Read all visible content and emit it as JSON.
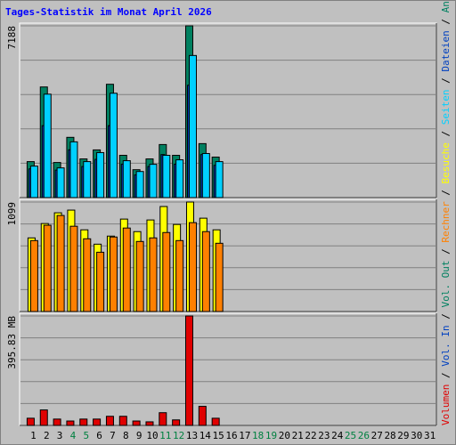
{
  "title": "Tages-Statistik im Monat April 2026",
  "legend_separator": " / ",
  "x_axis": {
    "categories": [
      "1",
      "2",
      "3",
      "4",
      "5",
      "6",
      "7",
      "8",
      "9",
      "10",
      "11",
      "12",
      "13",
      "14",
      "15",
      "16",
      "17",
      "18",
      "19",
      "20",
      "21",
      "22",
      "23",
      "24",
      "25",
      "26",
      "27",
      "28",
      "29",
      "30",
      "31"
    ],
    "colors": [
      "#000000",
      "#000000",
      "#000000",
      "#008040",
      "#008040",
      "#000000",
      "#000000",
      "#000000",
      "#000000",
      "#000000",
      "#008040",
      "#008040",
      "#000000",
      "#000000",
      "#000000",
      "#000000",
      "#000000",
      "#008040",
      "#008040",
      "#000000",
      "#000000",
      "#000000",
      "#000000",
      "#000000",
      "#008040",
      "#008040",
      "#000000",
      "#000000",
      "#000000",
      "#000000",
      "#000000"
    ]
  },
  "chart_data": [
    {
      "type": "bar",
      "ylim": [
        0,
        7188
      ],
      "yticks": [
        7188
      ],
      "series": [
        {
          "name": "Anfragen",
          "color": "#008060",
          "values": [
            1505,
            4629,
            1468,
            2521,
            1618,
            1995,
            4742,
            1769,
            1167,
            1618,
            2220,
            1769,
            7188,
            2258,
            1694,
            null,
            null,
            null,
            null,
            null,
            null,
            null,
            null,
            null,
            null,
            null,
            null,
            null,
            null,
            null,
            null
          ]
        },
        {
          "name": "Dateien",
          "color": "#0040c0",
          "values": [
            1200,
            3010,
            1150,
            2000,
            1300,
            1600,
            3010,
            1400,
            950,
            1300,
            1800,
            1400,
            4700,
            1800,
            1350,
            null,
            null,
            null,
            null,
            null,
            null,
            null,
            null,
            null,
            null,
            null,
            null,
            null,
            null,
            null,
            null
          ]
        },
        {
          "name": "Seiten",
          "color": "#00d0ff",
          "values": [
            1317,
            4328,
            1242,
            2333,
            1505,
            1882,
            4366,
            1543,
            1091,
            1392,
            1769,
            1580,
            5946,
            1844,
            1505,
            null,
            null,
            null,
            null,
            null,
            null,
            null,
            null,
            null,
            null,
            null,
            null,
            null,
            null,
            null,
            null
          ]
        }
      ]
    },
    {
      "type": "bar",
      "ylim": [
        0,
        1099
      ],
      "yticks": [
        1099
      ],
      "series": [
        {
          "name": "Besuche",
          "color": "#ffff00",
          "values": [
            739,
            883,
            991,
            1018,
            820,
            676,
            757,
            928,
            802,
            919,
            1054,
            874,
            1099,
            937,
            820,
            null,
            null,
            null,
            null,
            null,
            null,
            null,
            null,
            null,
            null,
            null,
            null,
            null,
            null,
            null,
            null
          ]
        },
        {
          "name": "Rechner",
          "color": "#ff8000",
          "values": [
            712,
            866,
            964,
            856,
            730,
            595,
            748,
            838,
            703,
            739,
            793,
            712,
            892,
            802,
            685,
            null,
            null,
            null,
            null,
            null,
            null,
            null,
            null,
            null,
            null,
            null,
            null,
            null,
            null,
            null,
            null
          ]
        }
      ]
    },
    {
      "type": "bar",
      "ylim": [
        0,
        395.83
      ],
      "yticks": [
        {
          "value": 395.83,
          "label": "395.83 MB"
        }
      ],
      "series": [
        {
          "name": "Volumen",
          "color": "#e00000",
          "values": [
            26,
            56,
            23,
            16,
            23,
            23,
            33,
            33,
            16,
            13,
            46,
            20,
            395.83,
            69,
            26,
            null,
            null,
            null,
            null,
            null,
            null,
            null,
            null,
            null,
            null,
            null,
            null,
            null,
            null,
            null,
            null
          ]
        },
        {
          "name": "Vol. In",
          "color": "#0040c0",
          "values": [
            0,
            0,
            0,
            0,
            0,
            0,
            0,
            0,
            0,
            0,
            0,
            0,
            0,
            0,
            0,
            null,
            null,
            null,
            null,
            null,
            null,
            null,
            null,
            null,
            null,
            null,
            null,
            null,
            null,
            null,
            null
          ]
        },
        {
          "name": "Vol. Out",
          "color": "#008060",
          "values": [
            0,
            0,
            0,
            0,
            0,
            0,
            0,
            0,
            0,
            0,
            0,
            0,
            0,
            0,
            0,
            null,
            null,
            null,
            null,
            null,
            null,
            null,
            null,
            null,
            null,
            null,
            null,
            null,
            null,
            null,
            null
          ]
        }
      ]
    }
  ]
}
